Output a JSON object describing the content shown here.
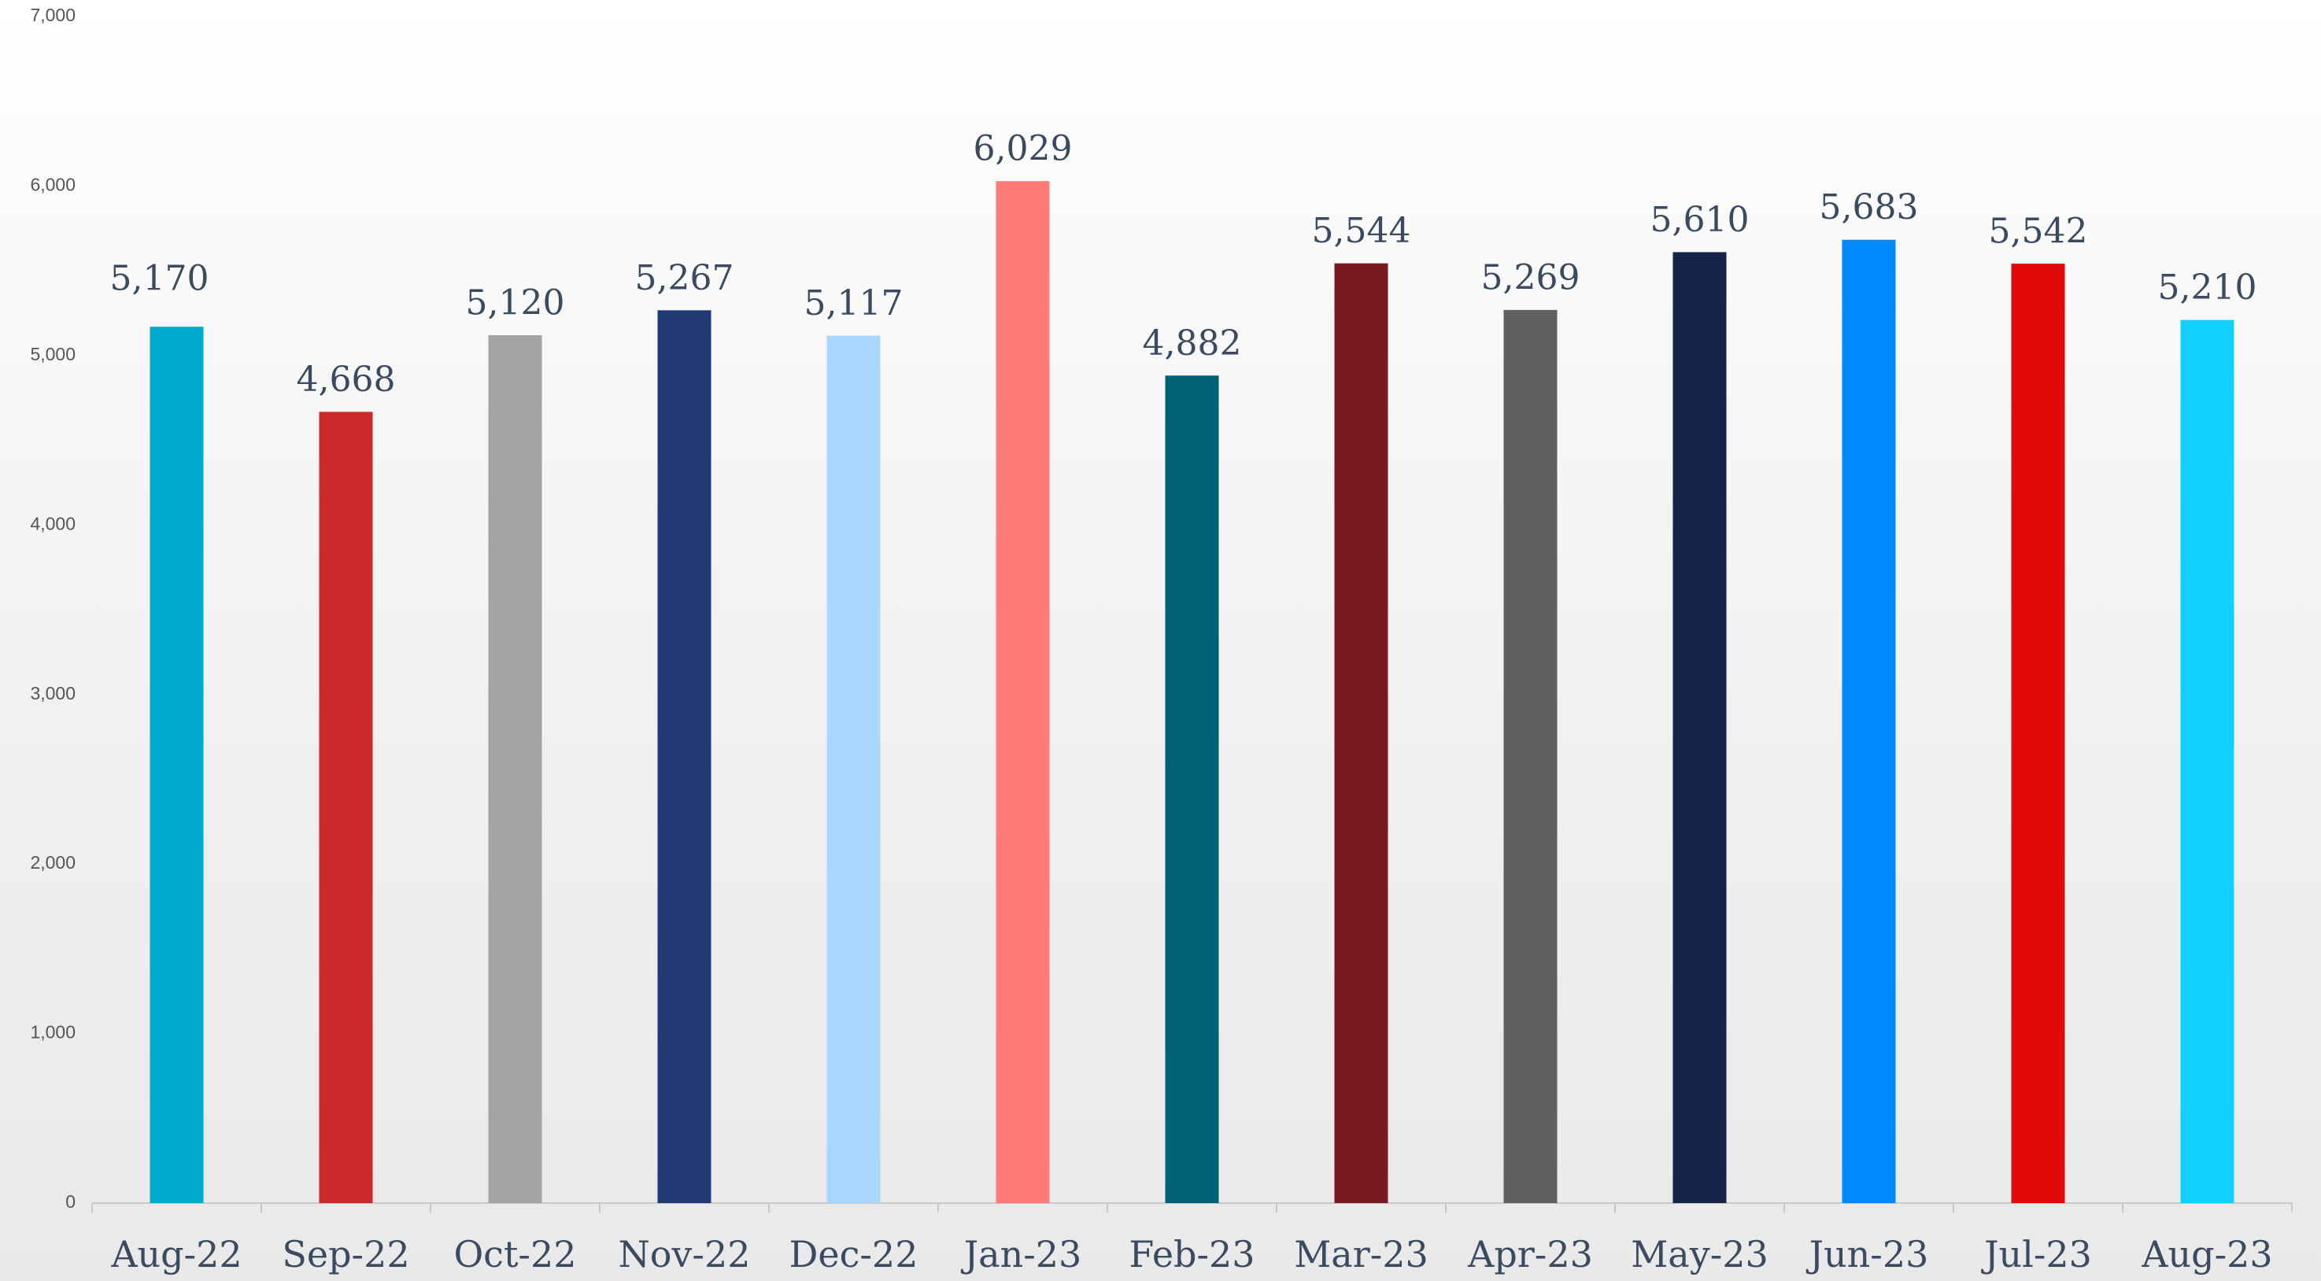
{
  "chart_data": {
    "type": "bar",
    "categories": [
      "Aug-22",
      "Sep-22",
      "Oct-22",
      "Nov-22",
      "Dec-22",
      "Jan-23",
      "Feb-23",
      "Mar-23",
      "Apr-23",
      "May-23",
      "Jun-23",
      "Jul-23",
      "Aug-23"
    ],
    "values": [
      5170,
      4668,
      5120,
      5267,
      5117,
      6029,
      4882,
      5544,
      5269,
      5610,
      5683,
      5542,
      5210
    ],
    "value_labels": [
      "5,170",
      "4,668",
      "5,120",
      "5,267",
      "5,117",
      "6,029",
      "4,882",
      "5,544",
      "5,269",
      "5,610",
      "5,683",
      "5,542",
      "5,210"
    ],
    "colors": [
      "#00a9d0",
      "#cc2a2a",
      "#a3a3a3",
      "#213a73",
      "#a8d8ff",
      "#ff7b77",
      "#006177",
      "#7a1a1e",
      "#606060",
      "#142347",
      "#0088ff",
      "#e00a0a",
      "#10d0ff"
    ],
    "ylim": [
      0,
      7000
    ],
    "yticks": [
      0,
      {
        "value": 1000,
        "label": "1,000"
      },
      {
        "value": 2000,
        "label": "2,000"
      },
      {
        "value": 3000,
        "label": "3,000"
      },
      {
        "value": 4000,
        "label": "4,000"
      },
      {
        "value": 5000,
        "label": "5,000"
      },
      {
        "value": 6000,
        "label": "6,000"
      },
      {
        "value": 7000,
        "label": "7,000"
      }
    ],
    "grid": false
  }
}
